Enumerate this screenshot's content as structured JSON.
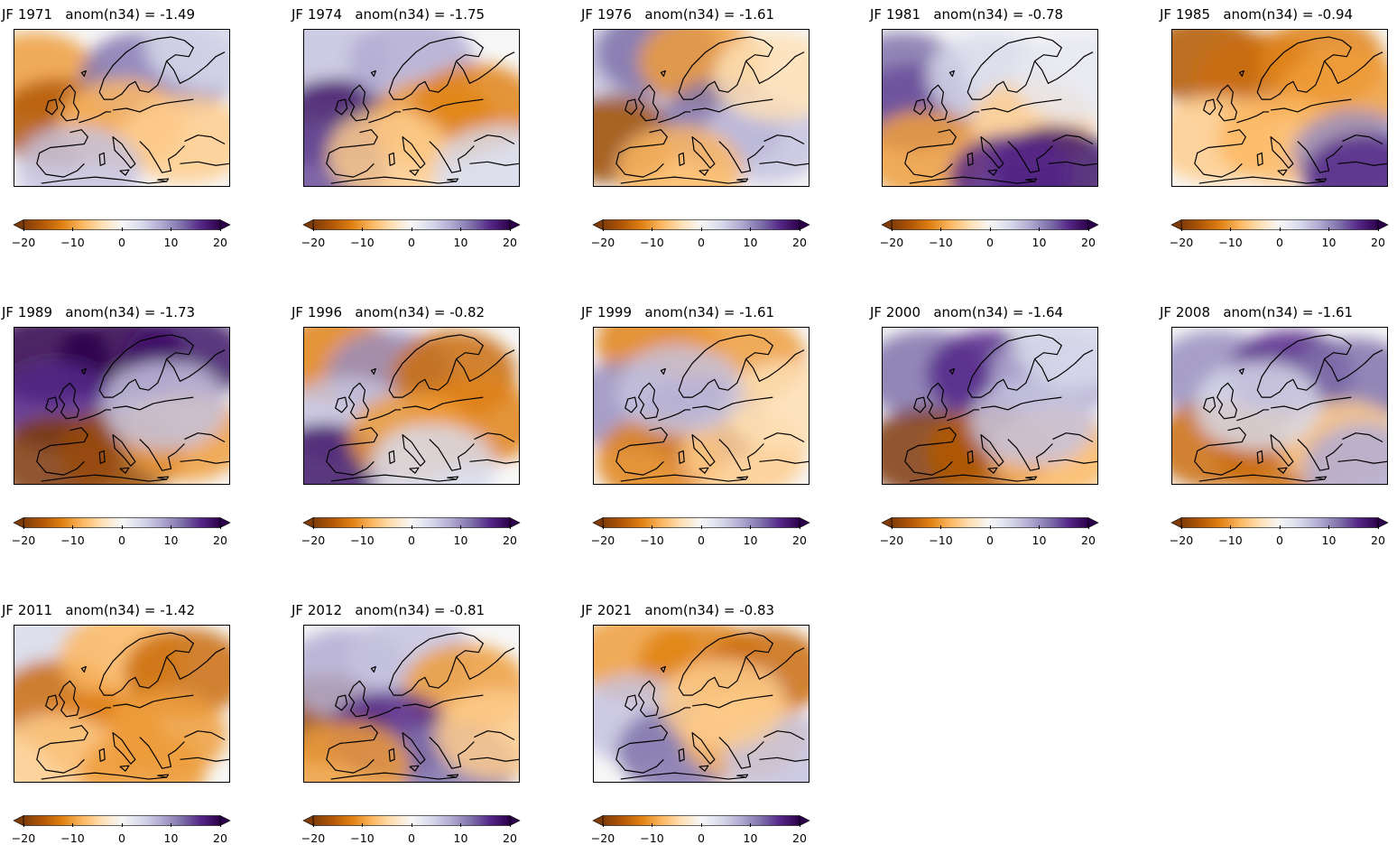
{
  "panels": [
    {
      "season": "JF",
      "year": "1971",
      "label": "anom(n34)",
      "value": "-1.49"
    },
    {
      "season": "JF",
      "year": "1974",
      "label": "anom(n34)",
      "value": "-1.75"
    },
    {
      "season": "JF",
      "year": "1976",
      "label": "anom(n34)",
      "value": "-1.61"
    },
    {
      "season": "JF",
      "year": "1981",
      "label": "anom(n34)",
      "value": "-0.78"
    },
    {
      "season": "JF",
      "year": "1985",
      "label": "anom(n34)",
      "value": "-0.94"
    },
    {
      "season": "JF",
      "year": "1989",
      "label": "anom(n34)",
      "value": "-1.73"
    },
    {
      "season": "JF",
      "year": "1996",
      "label": "anom(n34)",
      "value": "-0.82"
    },
    {
      "season": "JF",
      "year": "1999",
      "label": "anom(n34)",
      "value": "-1.61"
    },
    {
      "season": "JF",
      "year": "2000",
      "label": "anom(n34)",
      "value": "-1.64"
    },
    {
      "season": "JF",
      "year": "2008",
      "label": "anom(n34)",
      "value": "-1.61"
    },
    {
      "season": "JF",
      "year": "2011",
      "label": "anom(n34)",
      "value": "-1.42"
    },
    {
      "season": "JF",
      "year": "2012",
      "label": "anom(n34)",
      "value": "-0.81"
    },
    {
      "season": "JF",
      "year": "2021",
      "label": "anom(n34)",
      "value": "-0.83"
    }
  ],
  "colorbar": {
    "min": -20,
    "max": 20,
    "extend": "both",
    "colormap": "PuOr",
    "ticks": [
      -20,
      -10,
      0,
      10,
      20
    ],
    "tick_labels": [
      "−20",
      "−10",
      "0",
      "10",
      "20"
    ],
    "colors": [
      "#7f3b08",
      "#b35806",
      "#e08214",
      "#fdb863",
      "#fee0b6",
      "#f7f7f7",
      "#d8daeb",
      "#b2abd2",
      "#8073ac",
      "#542788",
      "#2d004b"
    ]
  }
}
